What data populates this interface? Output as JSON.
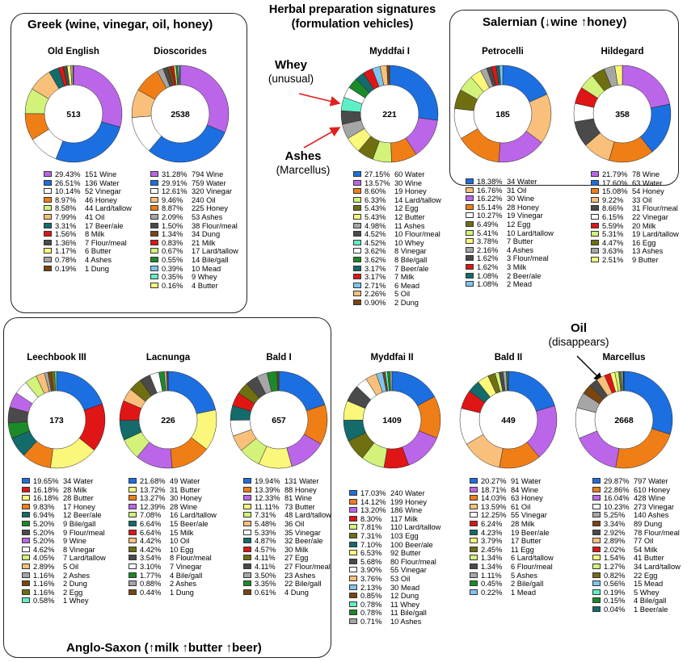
{
  "main_title": [
    "Herbal preparation signatures",
    "(formulation vehicles)"
  ],
  "groups": {
    "greek": "Greek (wine, vinegar, oil, honey)",
    "salernian": "Salernian (↓wine ↑honey)",
    "anglo_saxon": "Anglo-Saxon (↑milk ↑butter ↑beer)"
  },
  "annotations": {
    "whey_bold": "Whey",
    "whey_note": "(unusual)",
    "ashes_bold": "Ashes",
    "ashes_note": "(Marcellus)",
    "oil_bold": "Oil",
    "oil_note": "(disappears)"
  },
  "colors": {
    "Water": "#1c6fe0",
    "Wine": "#bb66e8",
    "Vinegar": "#ffffff",
    "Honey": "#f07e16",
    "Lard/tallow": "#d2f27a",
    "Oil": "#f8c07a",
    "Beer/ale": "#136b6b",
    "Milk": "#e01515",
    "Flour/meal": "#4a4a4a",
    "Butter": "#fbf77a",
    "Ashes": "#a6a6a6",
    "Dung": "#7a4510",
    "Egg": "#6f6f12",
    "Bile/gall": "#1c8a28",
    "Mead": "#7fc4ef",
    "Whey": "#5fefc6"
  },
  "chart_data": [
    {
      "type": "pie",
      "title": "Old English",
      "total": "513",
      "slices": [
        {
          "label": "Wine",
          "pct": "29.43%",
          "count": "151"
        },
        {
          "label": "Water",
          "pct": "26.51%",
          "count": "136"
        },
        {
          "label": "Vinegar",
          "pct": "10.14%",
          "count": "52"
        },
        {
          "label": "Honey",
          "pct": "8.97%",
          "count": "46"
        },
        {
          "label": "Lard/tallow",
          "pct": "8.58%",
          "count": "44"
        },
        {
          "label": "Oil",
          "pct": "7.99%",
          "count": "41"
        },
        {
          "label": "Beer/ale",
          "pct": "3.31%",
          "count": "17"
        },
        {
          "label": "Milk",
          "pct": "1.56%",
          "count": "8"
        },
        {
          "label": "Flour/meal",
          "pct": "1.36%",
          "count": "7"
        },
        {
          "label": "Butter",
          "pct": "1.17%",
          "count": "6"
        },
        {
          "label": "Ashes",
          "pct": "0.78%",
          "count": "4"
        },
        {
          "label": "Dung",
          "pct": "0.19%",
          "count": "1"
        }
      ]
    },
    {
      "type": "pie",
      "title": "Dioscorides",
      "total": "2538",
      "slices": [
        {
          "label": "Wine",
          "pct": "31.28%",
          "count": "794"
        },
        {
          "label": "Water",
          "pct": "29.91%",
          "count": "759"
        },
        {
          "label": "Vinegar",
          "pct": "12.61%",
          "count": "320"
        },
        {
          "label": "Oil",
          "pct": "9.46%",
          "count": "240"
        },
        {
          "label": "Honey",
          "pct": "8.87%",
          "count": "225"
        },
        {
          "label": "Ashes",
          "pct": "2.09%",
          "count": "53"
        },
        {
          "label": "Flour/meal",
          "pct": "1.50%",
          "count": "38"
        },
        {
          "label": "Dung",
          "pct": "1.34%",
          "count": "34"
        },
        {
          "label": "Milk",
          "pct": "0.83%",
          "count": "21"
        },
        {
          "label": "Lard/tallow",
          "pct": "0.67%",
          "count": "17"
        },
        {
          "label": "Bile/gall",
          "pct": "0.55%",
          "count": "14"
        },
        {
          "label": "Mead",
          "pct": "0.39%",
          "count": "10"
        },
        {
          "label": "Whey",
          "pct": "0.35%",
          "count": "9"
        },
        {
          "label": "Butter",
          "pct": "0.16%",
          "count": "4"
        }
      ]
    },
    {
      "type": "pie",
      "title": "Myddfai I",
      "total": "221",
      "slices": [
        {
          "label": "Water",
          "pct": "27.15%",
          "count": "60"
        },
        {
          "label": "Wine",
          "pct": "13.57%",
          "count": "30"
        },
        {
          "label": "Honey",
          "pct": "8.60%",
          "count": "19"
        },
        {
          "label": "Lard/tallow",
          "pct": "6.33%",
          "count": "14"
        },
        {
          "label": "Egg",
          "pct": "5.43%",
          "count": "12"
        },
        {
          "label": "Butter",
          "pct": "5.43%",
          "count": "12"
        },
        {
          "label": "Ashes",
          "pct": "4.98%",
          "count": "11"
        },
        {
          "label": "Flour/meal",
          "pct": "4.52%",
          "count": "10"
        },
        {
          "label": "Whey",
          "pct": "4.52%",
          "count": "10"
        },
        {
          "label": "Vinegar",
          "pct": "3.62%",
          "count": "8"
        },
        {
          "label": "Bile/gall",
          "pct": "3.62%",
          "count": "8"
        },
        {
          "label": "Beer/ale",
          "pct": "3.17%",
          "count": "7"
        },
        {
          "label": "Milk",
          "pct": "3.17%",
          "count": "7"
        },
        {
          "label": "Mead",
          "pct": "2.71%",
          "count": "6"
        },
        {
          "label": "Oil",
          "pct": "2.26%",
          "count": "5"
        },
        {
          "label": "Dung",
          "pct": "0.90%",
          "count": "2"
        }
      ]
    },
    {
      "type": "pie",
      "title": "Petrocelli",
      "total": "185",
      "slices": [
        {
          "label": "Water",
          "pct": "18.38%",
          "count": "34"
        },
        {
          "label": "Oil",
          "pct": "16.76%",
          "count": "31"
        },
        {
          "label": "Wine",
          "pct": "16.22%",
          "count": "30"
        },
        {
          "label": "Honey",
          "pct": "15.14%",
          "count": "28"
        },
        {
          "label": "Vinegar",
          "pct": "10.27%",
          "count": "19"
        },
        {
          "label": "Egg",
          "pct": "6.49%",
          "count": "12"
        },
        {
          "label": "Lard/tallow",
          "pct": "5.41%",
          "count": "10"
        },
        {
          "label": "Butter",
          "pct": "3.78%",
          "count": "7"
        },
        {
          "label": "Ashes",
          "pct": "2.16%",
          "count": "4"
        },
        {
          "label": "Flour/meal",
          "pct": "1.62%",
          "count": "3"
        },
        {
          "label": "Milk",
          "pct": "1.62%",
          "count": "3"
        },
        {
          "label": "Beer/ale",
          "pct": "1.08%",
          "count": "2"
        },
        {
          "label": "Mead",
          "pct": "1.08%",
          "count": "2"
        }
      ]
    },
    {
      "type": "pie",
      "title": "Hildegard",
      "total": "358",
      "slices": [
        {
          "label": "Wine",
          "pct": "21.79%",
          "count": "78"
        },
        {
          "label": "Water",
          "pct": "17.60%",
          "count": "63"
        },
        {
          "label": "Honey",
          "pct": "15.08%",
          "count": "54"
        },
        {
          "label": "Oil",
          "pct": "9.22%",
          "count": "33"
        },
        {
          "label": "Flour/meal",
          "pct": "8.66%",
          "count": "31"
        },
        {
          "label": "Vinegar",
          "pct": "6.15%",
          "count": "22"
        },
        {
          "label": "Milk",
          "pct": "5.59%",
          "count": "20"
        },
        {
          "label": "Lard/tallow",
          "pct": "5.31%",
          "count": "19"
        },
        {
          "label": "Egg",
          "pct": "4.47%",
          "count": "16"
        },
        {
          "label": "Ashes",
          "pct": "3.63%",
          "count": "13"
        },
        {
          "label": "Butter",
          "pct": "2.51%",
          "count": "9"
        }
      ]
    },
    {
      "type": "pie",
      "title": "Leechbook III",
      "total": "173",
      "slices": [
        {
          "label": "Water",
          "pct": "19.65%",
          "count": "34"
        },
        {
          "label": "Milk",
          "pct": "16.18%",
          "count": "28"
        },
        {
          "label": "Butter",
          "pct": "16.18%",
          "count": "28"
        },
        {
          "label": "Honey",
          "pct": "9.83%",
          "count": "17"
        },
        {
          "label": "Beer/ale",
          "pct": "6.94%",
          "count": "12"
        },
        {
          "label": "Bile/gall",
          "pct": "5.20%",
          "count": "9"
        },
        {
          "label": "Flour/meal",
          "pct": "5.20%",
          "count": "9"
        },
        {
          "label": "Wine",
          "pct": "5.20%",
          "count": "9"
        },
        {
          "label": "Vinegar",
          "pct": "4.62%",
          "count": "8"
        },
        {
          "label": "Lard/tallow",
          "pct": "4.05%",
          "count": "7"
        },
        {
          "label": "Oil",
          "pct": "2.89%",
          "count": "5"
        },
        {
          "label": "Ashes",
          "pct": "1.16%",
          "count": "2"
        },
        {
          "label": "Dung",
          "pct": "1.16%",
          "count": "2"
        },
        {
          "label": "Egg",
          "pct": "1.16%",
          "count": "2"
        },
        {
          "label": "Whey",
          "pct": "0.58%",
          "count": "1"
        }
      ]
    },
    {
      "type": "pie",
      "title": "Lacnunga",
      "total": "226",
      "slices": [
        {
          "label": "Water",
          "pct": "21.68%",
          "count": "49"
        },
        {
          "label": "Butter",
          "pct": "13.72%",
          "count": "31"
        },
        {
          "label": "Honey",
          "pct": "13.27%",
          "count": "30"
        },
        {
          "label": "Wine",
          "pct": "12.39%",
          "count": "28"
        },
        {
          "label": "Lard/tallow",
          "pct": "7.08%",
          "count": "16"
        },
        {
          "label": "Beer/ale",
          "pct": "6.64%",
          "count": "15"
        },
        {
          "label": "Milk",
          "pct": "6.64%",
          "count": "15"
        },
        {
          "label": "Oil",
          "pct": "4.42%",
          "count": "10"
        },
        {
          "label": "Egg",
          "pct": "4.42%",
          "count": "10"
        },
        {
          "label": "Flour/meal",
          "pct": "3.54%",
          "count": "8"
        },
        {
          "label": "Vinegar",
          "pct": "3.10%",
          "count": "7"
        },
        {
          "label": "Bile/gall",
          "pct": "1.77%",
          "count": "4"
        },
        {
          "label": "Ashes",
          "pct": "0.88%",
          "count": "2"
        },
        {
          "label": "Dung",
          "pct": "0.44%",
          "count": "1"
        }
      ]
    },
    {
      "type": "pie",
      "title": "Bald I",
      "total": "657",
      "slices": [
        {
          "label": "Water",
          "pct": "19.94%",
          "count": "131"
        },
        {
          "label": "Honey",
          "pct": "13.39%",
          "count": "88"
        },
        {
          "label": "Wine",
          "pct": "12.33%",
          "count": "81"
        },
        {
          "label": "Butter",
          "pct": "11.11%",
          "count": "73"
        },
        {
          "label": "Lard/tallow",
          "pct": "7.31%",
          "count": "48"
        },
        {
          "label": "Oil",
          "pct": "5.48%",
          "count": "36"
        },
        {
          "label": "Vinegar",
          "pct": "5.33%",
          "count": "35"
        },
        {
          "label": "Beer/ale",
          "pct": "4.87%",
          "count": "32"
        },
        {
          "label": "Milk",
          "pct": "4.57%",
          "count": "30"
        },
        {
          "label": "Egg",
          "pct": "4.11%",
          "count": "27"
        },
        {
          "label": "Flour/meal",
          "pct": "4.11%",
          "count": "27"
        },
        {
          "label": "Ashes",
          "pct": "3.50%",
          "count": "23"
        },
        {
          "label": "Bile/gall",
          "pct": "3.35%",
          "count": "22"
        },
        {
          "label": "Dung",
          "pct": "0.61%",
          "count": "4"
        }
      ]
    },
    {
      "type": "pie",
      "title": "Myddfai II",
      "total": "1409",
      "slices": [
        {
          "label": "Water",
          "pct": "17.03%",
          "count": "240"
        },
        {
          "label": "Honey",
          "pct": "14.12%",
          "count": "199"
        },
        {
          "label": "Wine",
          "pct": "13.20%",
          "count": "186"
        },
        {
          "label": "Milk",
          "pct": "8.30%",
          "count": "117"
        },
        {
          "label": "Lard/tallow",
          "pct": "7.81%",
          "count": "110"
        },
        {
          "label": "Egg",
          "pct": "7.31%",
          "count": "103"
        },
        {
          "label": "Beer/ale",
          "pct": "7.10%",
          "count": "100"
        },
        {
          "label": "Butter",
          "pct": "6.53%",
          "count": "92"
        },
        {
          "label": "Flour/meal",
          "pct": "5.68%",
          "count": "80"
        },
        {
          "label": "Vinegar",
          "pct": "3.90%",
          "count": "55"
        },
        {
          "label": "Oil",
          "pct": "3.76%",
          "count": "53"
        },
        {
          "label": "Mead",
          "pct": "2.13%",
          "count": "30"
        },
        {
          "label": "Dung",
          "pct": "0.85%",
          "count": "12"
        },
        {
          "label": "Whey",
          "pct": "0.78%",
          "count": "11"
        },
        {
          "label": "Bile/gall",
          "pct": "0.78%",
          "count": "11"
        },
        {
          "label": "Ashes",
          "pct": "0.71%",
          "count": "10"
        }
      ]
    },
    {
      "type": "pie",
      "title": "Bald II",
      "total": "449",
      "slices": [
        {
          "label": "Water",
          "pct": "20.27%",
          "count": "91"
        },
        {
          "label": "Wine",
          "pct": "18.71%",
          "count": "84"
        },
        {
          "label": "Honey",
          "pct": "14.03%",
          "count": "63"
        },
        {
          "label": "Oil",
          "pct": "13.59%",
          "count": "61"
        },
        {
          "label": "Vinegar",
          "pct": "12.25%",
          "count": "55"
        },
        {
          "label": "Milk",
          "pct": "6.24%",
          "count": "28"
        },
        {
          "label": "Beer/ale",
          "pct": "4.23%",
          "count": "19"
        },
        {
          "label": "Butter",
          "pct": "3.79%",
          "count": "17"
        },
        {
          "label": "Egg",
          "pct": "2.45%",
          "count": "11"
        },
        {
          "label": "Lard/tallow",
          "pct": "1.34%",
          "count": "6"
        },
        {
          "label": "Flour/meal",
          "pct": "1.34%",
          "count": "6"
        },
        {
          "label": "Ashes",
          "pct": "1.11%",
          "count": "5"
        },
        {
          "label": "Bile/gall",
          "pct": "0.45%",
          "count": "2"
        },
        {
          "label": "Mead",
          "pct": "0.22%",
          "count": "1"
        }
      ]
    },
    {
      "type": "pie",
      "title": "Marcellus",
      "total": "2668",
      "slices": [
        {
          "label": "Water",
          "pct": "29.87%",
          "count": "797"
        },
        {
          "label": "Honey",
          "pct": "22.86%",
          "count": "610"
        },
        {
          "label": "Wine",
          "pct": "16.04%",
          "count": "428"
        },
        {
          "label": "Vinegar",
          "pct": "10.23%",
          "count": "273"
        },
        {
          "label": "Ashes",
          "pct": "5.25%",
          "count": "140"
        },
        {
          "label": "Dung",
          "pct": "3.34%",
          "count": "89"
        },
        {
          "label": "Flour/meal",
          "pct": "2.92%",
          "count": "78"
        },
        {
          "label": "Oil",
          "pct": "2.89%",
          "count": "77"
        },
        {
          "label": "Milk",
          "pct": "2.02%",
          "count": "54"
        },
        {
          "label": "Butter",
          "pct": "1.54%",
          "count": "41"
        },
        {
          "label": "Lard/tallow",
          "pct": "1.27%",
          "count": "34"
        },
        {
          "label": "Egg",
          "pct": "0.82%",
          "count": "22"
        },
        {
          "label": "Mead",
          "pct": "0.56%",
          "count": "15"
        },
        {
          "label": "Whey",
          "pct": "0.19%",
          "count": "5"
        },
        {
          "label": "Bile/gall",
          "pct": "0.15%",
          "count": "4"
        },
        {
          "label": "Beer/ale",
          "pct": "0.04%",
          "count": "1"
        }
      ]
    }
  ]
}
